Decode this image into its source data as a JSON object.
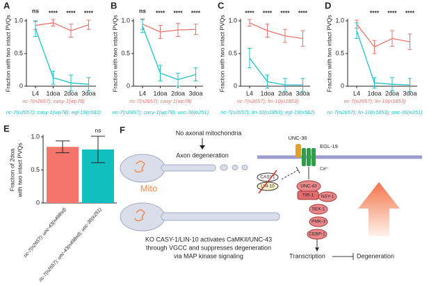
{
  "chart_data": [
    {
      "panel": "A",
      "type": "line",
      "y_label": "Fraction with two intact PVQs",
      "categories": [
        "L4",
        "1doa",
        "2doa",
        "3doa"
      ],
      "ylim": [
        0,
        1
      ],
      "yticks": [
        0,
        0.5,
        {
          "value": 1,
          "label": "1.0"
        }
      ],
      "annotations": [
        "ns",
        "****",
        "****",
        "****"
      ],
      "series": [
        {
          "name": "ric-7(n2657); casy-1(wp78)",
          "color": "#e8736b",
          "values": [
            0.93,
            0.97,
            0.85,
            0.94
          ],
          "errors": [
            0.06,
            0.05,
            0.1,
            0.07
          ]
        },
        {
          "name": "ric-7(n2657); casy-1(wp78); egl-19(n582)",
          "color": "#1bc3c8",
          "values": [
            0.88,
            0.13,
            0.05,
            0.03
          ],
          "errors": [
            0.12,
            0.1,
            0.12,
            0.1
          ]
        }
      ]
    },
    {
      "panel": "B",
      "type": "line",
      "y_label": "Fraction with two intact PVQs",
      "categories": [
        "L4",
        "1doa",
        "2doa",
        "3doa"
      ],
      "ylim": [
        0,
        1
      ],
      "yticks": [
        0,
        0.5,
        {
          "value": 1,
          "label": "1.0"
        }
      ],
      "annotations": [
        "ns",
        "****",
        "****",
        "****"
      ],
      "series": [
        {
          "name": "ric-7(n2657); casy-1(wp78)",
          "color": "#e8736b",
          "values": [
            0.95,
            0.83,
            0.86,
            0.87
          ],
          "errors": [
            0.08,
            0.1,
            0.1,
            0.08
          ]
        },
        {
          "name": "ric-7(n2657); casy-1(wp78); unc-36(e251)",
          "color": "#1bc3c8",
          "values": [
            0.92,
            0.2,
            0.1,
            0.18
          ],
          "errors": [
            0.1,
            0.12,
            0.1,
            0.1
          ]
        }
      ]
    },
    {
      "panel": "C",
      "type": "line",
      "y_label": "Fraction with two intact PVQs",
      "categories": [
        "L4",
        "1doa",
        "2doa",
        "3doa"
      ],
      "ylim": [
        0,
        1
      ],
      "yticks": [
        0,
        0.5,
        {
          "value": 1,
          "label": "1.0"
        }
      ],
      "annotations": [
        "****",
        "****",
        "****",
        "****"
      ],
      "series": [
        {
          "name": "ric-7(n2657); lin-10(n1853)",
          "color": "#e8736b",
          "values": [
            0.97,
            0.85,
            0.77,
            0.73
          ],
          "errors": [
            0.05,
            0.1,
            0.1,
            0.12
          ]
        },
        {
          "name": "ric-7(n2657); lin-10(n1853); egl-19(n582)",
          "color": "#1bc3c8",
          "values": [
            0.43,
            0.07,
            0.02,
            0.02
          ],
          "errors": [
            0.15,
            0.1,
            0.1,
            0.1
          ]
        }
      ]
    },
    {
      "panel": "D",
      "type": "line",
      "y_label": "Fraction with two intact PVQs",
      "categories": [
        "L4",
        "1doa",
        "2doa",
        "3doa"
      ],
      "ylim": [
        0,
        1
      ],
      "yticks": [
        0,
        0.5,
        {
          "value": 1,
          "label": "1.0"
        }
      ],
      "annotations": [
        null,
        "****",
        "****",
        "****"
      ],
      "series": [
        {
          "name": "ric-7(n2657); lin-10(n1853)",
          "color": "#e8736b",
          "values": [
            0.95,
            0.6,
            0.73,
            0.68
          ],
          "errors": [
            0.06,
            0.1,
            0.12,
            0.12
          ]
        },
        {
          "name": "ric-7(n2657); lin-10(n1853); unc-36(e251)",
          "color": "#1bc3c8",
          "values": [
            0.85,
            0.05,
            0.03,
            0.02
          ],
          "errors": [
            0.12,
            0.08,
            0.1,
            0.1
          ]
        }
      ]
    },
    {
      "panel": "E",
      "type": "bar",
      "y_label": [
        "Fraction of 2doa",
        "with two intact PVQs"
      ],
      "categories": [
        "ric-7(n2657); unc-43(n498sd)",
        "ric-7(n2657); unc-43(n498sd); unc-36(e251)"
      ],
      "values": [
        0.85,
        0.81
      ],
      "errors": [
        0.09,
        0.2
      ],
      "colors": [
        "#f4756c",
        "#11bfbf"
      ],
      "ylim": [
        0,
        1
      ],
      "yticks": [
        0,
        0.5,
        {
          "value": 1,
          "label": "1.0"
        }
      ],
      "annotations": [
        null,
        "ns"
      ]
    }
  ],
  "diagram_f": {
    "panel": "F",
    "no_mito": "No axonal mitochondria",
    "degeneration_label": "Axon degeneration",
    "mito": "Mito",
    "caption": [
      "KO CASY-1/LIN-10 activates CaMKII/UNC-43",
      "through VGCC and suppresses degeneration",
      "via MAP kinase signaling"
    ],
    "unc36": "UNC-36",
    "egl19": "EGL-19",
    "ca": "Ca²⁺",
    "casy1": "CASY1",
    "lin10": "LIN-10",
    "unc43": "UNC-43",
    "tir1": "TIR-1",
    "nsy1": "NSY-1",
    "sek1": "SEK-1",
    "pmk3": "PMK-3",
    "cebp1": "CEBP-1",
    "transcription": "Transcription",
    "degeneration": "Degeneration"
  }
}
